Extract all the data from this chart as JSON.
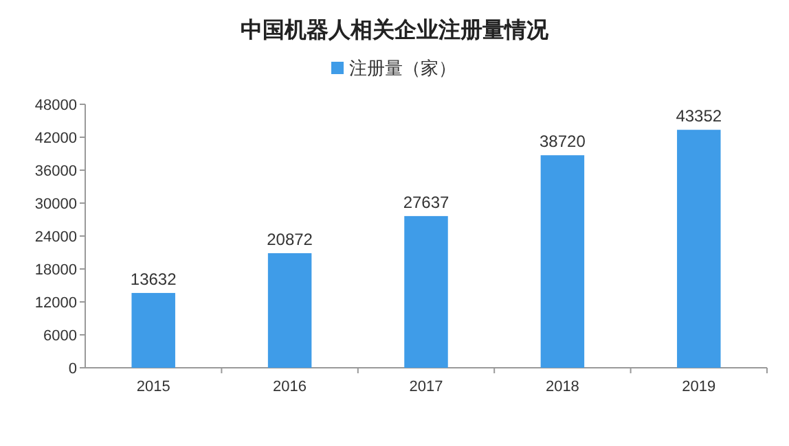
{
  "chart_data": {
    "type": "bar",
    "title": "中国机器人相关企业注册量情况",
    "categories": [
      "2015",
      "2016",
      "2017",
      "2018",
      "2019"
    ],
    "series": [
      {
        "name": "注册量（家）",
        "color": "#3f9ce8",
        "values": [
          13632,
          20872,
          27637,
          38720,
          43352
        ]
      }
    ],
    "ylim": [
      0,
      48000
    ],
    "yticks": [
      0,
      6000,
      12000,
      18000,
      24000,
      30000,
      36000,
      42000,
      48000
    ],
    "data_labels": true,
    "legend": "top"
  }
}
